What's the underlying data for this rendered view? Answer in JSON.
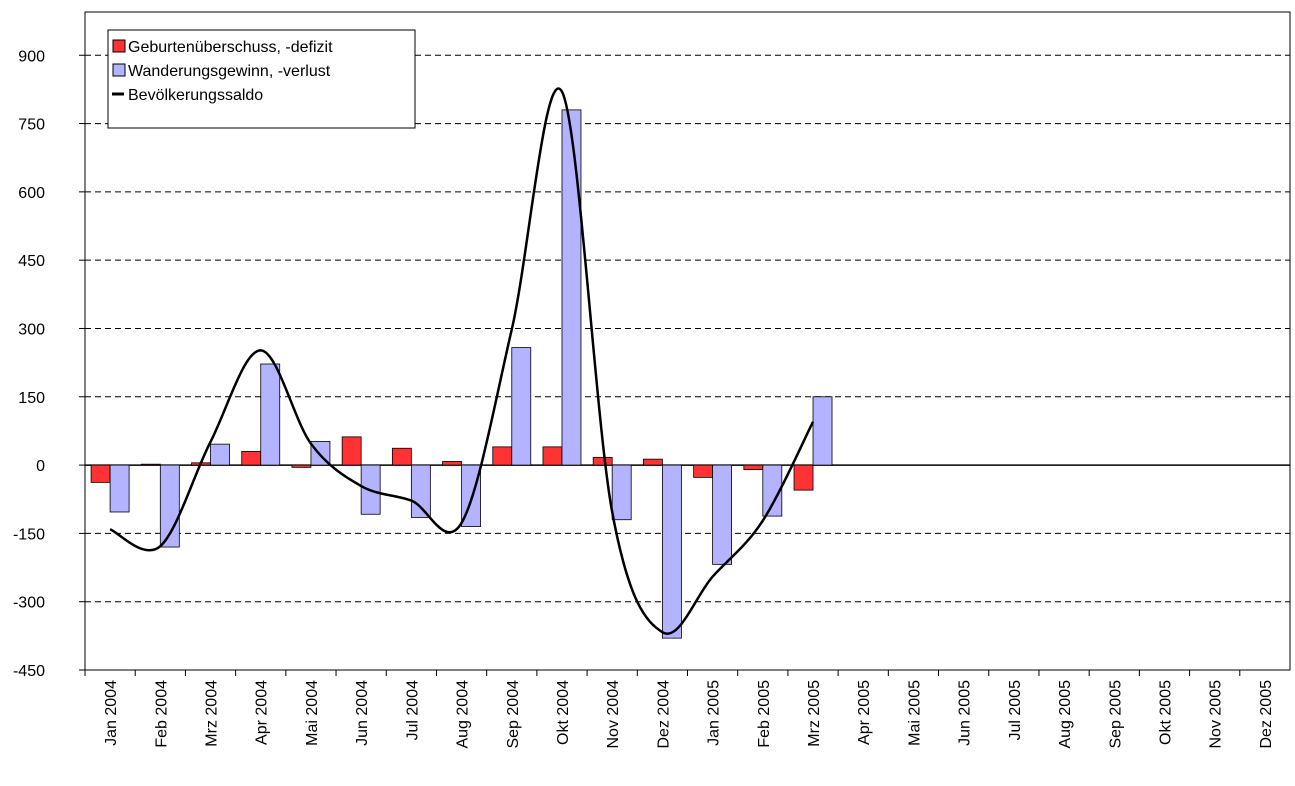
{
  "chart_data": {
    "type": "bar",
    "categories": [
      "Jan 2004",
      "Feb 2004",
      "Mrz 2004",
      "Apr 2004",
      "Mai 2004",
      "Jun 2004",
      "Jul 2004",
      "Aug 2004",
      "Sep 2004",
      "Okt 2004",
      "Nov 2004",
      "Dez 2004",
      "Jan 2005",
      "Feb 2005",
      "Mrz 2005",
      "Apr 2005",
      "Mai 2005",
      "Jun 2005",
      "Jul 2005",
      "Aug 2005",
      "Sep 2005",
      "Okt 2005",
      "Nov 2005",
      "Dez 2005"
    ],
    "series": [
      {
        "name": "Geburtenüberschuss, -defizit",
        "color": "#ff3333",
        "type": "bar",
        "values": [
          -38,
          2,
          5,
          30,
          -5,
          62,
          37,
          8,
          40,
          40,
          17,
          13,
          -27,
          -10,
          -55,
          null,
          null,
          null,
          null,
          null,
          null,
          null,
          null,
          null
        ]
      },
      {
        "name": "Wanderungsgewinn, -verlust",
        "color": "#b3b3ff",
        "type": "bar",
        "values": [
          -103,
          -180,
          46,
          222,
          52,
          -108,
          -115,
          -135,
          258,
          780,
          -120,
          -380,
          -218,
          -112,
          150,
          null,
          null,
          null,
          null,
          null,
          null,
          null,
          null,
          null
        ]
      },
      {
        "name": "Bevölkerungssaldo",
        "color": "#000000",
        "type": "line",
        "smooth": true,
        "values": [
          -141,
          -178,
          51,
          252,
          47,
          -46,
          -78,
          -127,
          298,
          820,
          -103,
          -367,
          -245,
          -122,
          95,
          null,
          null,
          null,
          null,
          null,
          null,
          null,
          null,
          null
        ]
      }
    ],
    "ylim": [
      -450,
      995
    ],
    "yticks": [
      -450,
      -300,
      -150,
      0,
      150,
      300,
      450,
      600,
      750,
      900
    ],
    "grid": true,
    "legend": "upper left"
  }
}
